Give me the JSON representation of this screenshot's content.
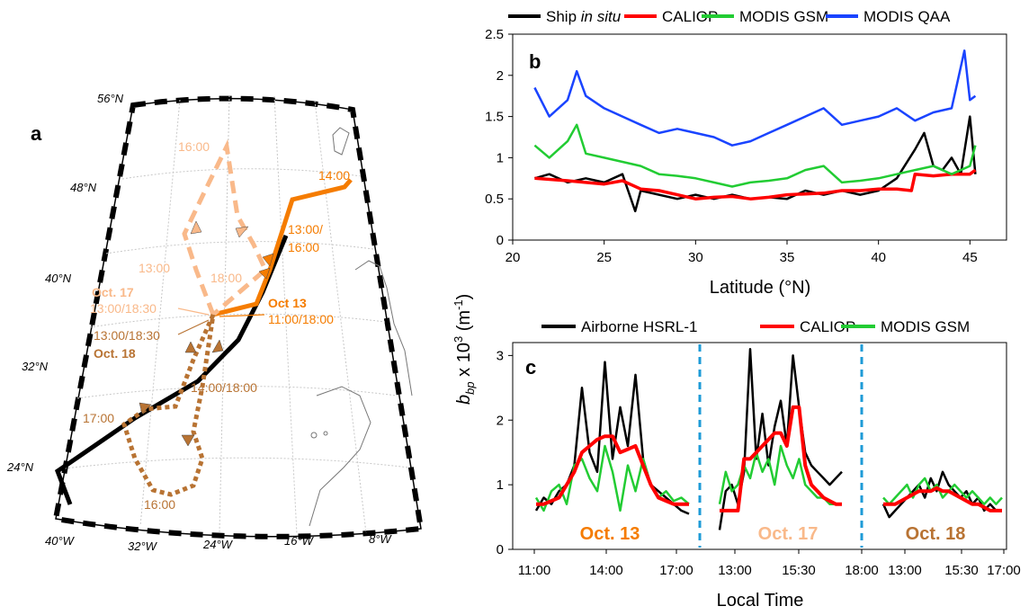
{
  "colors": {
    "ship": "#000000",
    "caliop": "#ff0000",
    "modis_gsm": "#22cc33",
    "modis_qaa": "#1a44ff",
    "oct13": "#f57c00",
    "oct17": "#f9b98a",
    "oct18": "#b87333",
    "divider": "#1e9bd7"
  },
  "panel_a": {
    "letter": "a",
    "lat_labels": [
      "56°N",
      "48°N",
      "40°N",
      "32°N",
      "24°N"
    ],
    "lon_labels": [
      "40°W",
      "32°W",
      "24°W",
      "16°W",
      "8°W"
    ],
    "time_labels": {
      "oct17_top": "16:00",
      "oct13_end": "14:00",
      "oct13_mid_a": "13:00/",
      "oct13_mid_b": "16:00",
      "oct17_13": "13:00",
      "oct17_18": "18:00",
      "oct17_date": "Oct. 17",
      "oct17_time": "13:00/18:30",
      "oct13_date": "Oct 13",
      "oct13_time": "11:00/18:00",
      "oct18_time": "13:00/18:30",
      "oct18_date": "Oct. 18",
      "oct18_1400": "14:00/18:00",
      "oct18_17": "17:00",
      "oct18_16": "16:00"
    }
  },
  "chart_data": [
    {
      "type": "line",
      "panel": "b",
      "xlabel": "Latitude (°N)",
      "ylabel": "b_bp x 10^3 (m^-1)",
      "xlim": [
        20,
        47
      ],
      "ylim": [
        0,
        2.5
      ],
      "xticks": [
        "20",
        "25",
        "30",
        "35",
        "40",
        "45"
      ],
      "yticks": [
        "0",
        "0.5",
        "1",
        "1.5",
        "2",
        "2.5"
      ],
      "legend": [
        "Ship in situ",
        "CALIOP",
        "MODIS GSM",
        "MODIS QAA"
      ],
      "series": [
        {
          "name": "Ship in situ",
          "x": [
            21.2,
            22,
            23,
            24,
            25,
            26,
            26.7,
            27,
            28,
            29,
            30,
            31,
            32,
            33,
            34,
            35,
            36,
            37,
            38,
            39,
            40,
            41,
            42,
            42.5,
            43,
            43.5,
            44,
            44.5,
            45,
            45.3
          ],
          "y": [
            0.75,
            0.8,
            0.7,
            0.75,
            0.7,
            0.8,
            0.35,
            0.6,
            0.55,
            0.5,
            0.55,
            0.5,
            0.55,
            0.5,
            0.52,
            0.5,
            0.6,
            0.55,
            0.6,
            0.55,
            0.6,
            0.75,
            1.1,
            1.3,
            0.9,
            0.85,
            1.0,
            0.8,
            1.5,
            0.8
          ]
        },
        {
          "name": "CALIOP",
          "x": [
            21.2,
            23,
            24,
            25,
            26,
            27,
            28,
            29,
            30,
            31,
            32,
            33,
            34,
            35,
            36,
            37,
            38,
            39,
            40,
            41,
            41.8,
            42,
            43,
            44,
            45,
            45.3
          ],
          "y": [
            0.75,
            0.72,
            0.7,
            0.68,
            0.72,
            0.62,
            0.6,
            0.55,
            0.5,
            0.52,
            0.53,
            0.5,
            0.52,
            0.55,
            0.56,
            0.57,
            0.6,
            0.6,
            0.62,
            0.62,
            0.6,
            0.8,
            0.78,
            0.8,
            0.8,
            0.85
          ]
        },
        {
          "name": "MODIS GSM",
          "x": [
            21.2,
            22,
            23,
            23.5,
            24,
            25,
            26,
            27,
            28,
            29,
            30,
            31,
            32,
            33,
            34,
            35,
            36,
            37,
            38,
            39,
            40,
            41,
            42,
            43,
            44,
            45,
            45.3
          ],
          "y": [
            1.15,
            1.0,
            1.2,
            1.4,
            1.05,
            1.0,
            0.95,
            0.9,
            0.8,
            0.78,
            0.75,
            0.7,
            0.65,
            0.7,
            0.72,
            0.75,
            0.85,
            0.9,
            0.7,
            0.72,
            0.75,
            0.8,
            0.85,
            0.9,
            0.8,
            0.9,
            1.15
          ]
        },
        {
          "name": "MODIS QAA",
          "x": [
            21.2,
            22,
            23,
            23.5,
            24,
            25,
            26,
            27,
            28,
            29,
            30,
            31,
            32,
            33,
            34,
            35,
            36,
            37,
            38,
            39,
            40,
            41,
            42,
            43,
            44,
            44.7,
            45,
            45.3
          ],
          "y": [
            1.85,
            1.5,
            1.7,
            2.05,
            1.75,
            1.6,
            1.5,
            1.4,
            1.3,
            1.35,
            1.3,
            1.25,
            1.15,
            1.2,
            1.3,
            1.4,
            1.5,
            1.6,
            1.4,
            1.45,
            1.5,
            1.6,
            1.45,
            1.55,
            1.6,
            2.3,
            1.7,
            1.75
          ]
        }
      ]
    },
    {
      "type": "line",
      "panel": "c",
      "xlabel": "Local Time",
      "ylim": [
        0,
        3.2
      ],
      "yticks": [
        "0",
        "1",
        "2",
        "3"
      ],
      "xticks": [
        "11:00",
        "14:00",
        "17:00",
        "13:00",
        "15:30",
        "18:00",
        "13:00",
        "15:30",
        "17:00"
      ],
      "legend": [
        "Airborne HSRL-1",
        "CALIOP",
        "MODIS GSM"
      ],
      "segments": [
        {
          "label": "Oct. 13",
          "x": [
            0,
            1,
            2,
            3,
            4,
            5,
            6,
            7,
            8,
            9,
            10,
            11,
            12,
            13,
            14,
            15,
            16,
            17,
            18,
            19,
            20
          ],
          "hsrl": [
            0.6,
            0.8,
            0.7,
            0.9,
            1.0,
            1.3,
            2.5,
            1.5,
            1.2,
            2.9,
            1.4,
            2.2,
            1.6,
            2.7,
            1.4,
            1.0,
            0.9,
            0.8,
            0.7,
            0.6,
            0.55
          ],
          "caliop": [
            0.7,
            0.7,
            0.75,
            0.8,
            1.0,
            1.2,
            1.5,
            1.6,
            1.7,
            1.75,
            1.75,
            1.5,
            1.55,
            1.6,
            1.3,
            1.0,
            0.8,
            0.75,
            0.7,
            0.7,
            0.7
          ],
          "gsm": [
            0.8,
            0.6,
            0.9,
            1.0,
            0.7,
            1.3,
            1.4,
            1.1,
            0.9,
            1.6,
            1.2,
            0.6,
            1.3,
            0.9,
            1.4,
            1.0,
            0.8,
            0.9,
            0.75,
            0.8,
            0.7
          ]
        },
        {
          "label": "Oct. 17",
          "x": [
            0,
            1,
            2,
            3,
            4,
            5,
            6,
            7,
            8,
            9,
            10,
            11,
            12,
            13,
            14,
            15,
            16,
            17,
            18,
            19,
            20
          ],
          "hsrl": [
            0.3,
            0.9,
            1.0,
            0.7,
            1.2,
            3.1,
            1.4,
            2.1,
            1.3,
            1.9,
            2.3,
            1.6,
            3.0,
            2.2,
            1.5,
            1.3,
            1.2,
            1.1,
            1.0,
            1.1,
            1.2
          ],
          "caliop": [
            0.6,
            0.6,
            0.6,
            0.6,
            1.4,
            1.4,
            1.5,
            1.6,
            1.7,
            1.8,
            1.8,
            1.6,
            2.2,
            2.2,
            1.3,
            1.0,
            0.9,
            0.8,
            0.75,
            0.7,
            0.7
          ],
          "gsm": [
            0.7,
            1.2,
            0.9,
            1.0,
            1.3,
            1.1,
            1.5,
            1.2,
            1.4,
            1.0,
            1.6,
            1.3,
            1.1,
            1.4,
            1.0,
            0.9,
            0.8,
            0.8,
            0.7,
            0.7,
            0.7
          ]
        },
        {
          "label": "Oct. 18",
          "x": [
            0,
            1,
            2,
            3,
            4,
            5,
            6,
            7,
            8,
            9,
            10,
            11,
            12,
            13,
            14,
            15,
            16,
            17,
            18,
            19,
            20
          ],
          "hsrl": [
            0.7,
            0.5,
            0.6,
            0.7,
            0.8,
            0.9,
            1.0,
            0.8,
            1.1,
            0.9,
            1.2,
            1.0,
            0.9,
            0.8,
            0.9,
            0.7,
            0.8,
            0.6,
            0.7,
            0.6,
            0.6
          ],
          "caliop": [
            0.7,
            0.7,
            0.7,
            0.75,
            0.8,
            0.85,
            0.9,
            0.9,
            0.9,
            0.95,
            0.9,
            0.9,
            0.85,
            0.8,
            0.75,
            0.7,
            0.7,
            0.65,
            0.6,
            0.6,
            0.6
          ],
          "gsm": [
            0.8,
            0.7,
            0.8,
            0.9,
            1.0,
            0.8,
            1.0,
            1.1,
            0.9,
            1.0,
            0.8,
            0.9,
            1.0,
            0.9,
            0.8,
            0.9,
            0.8,
            0.7,
            0.8,
            0.7,
            0.8
          ]
        }
      ]
    }
  ]
}
